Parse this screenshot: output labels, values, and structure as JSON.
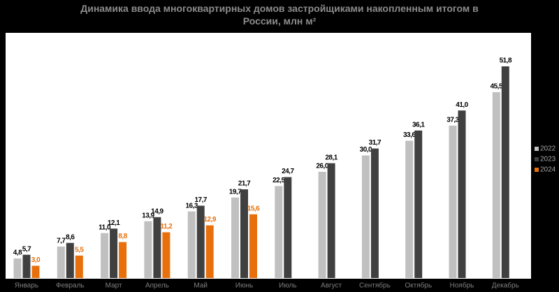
{
  "chart_data": {
    "type": "bar",
    "title": "Динамика ввода многоквартирных домов застройщиками накопленным итогом в России, млн м²",
    "categories": [
      "Январь",
      "Февраль",
      "Март",
      "Апрель",
      "Май",
      "Июнь",
      "Июль",
      "Август",
      "Сентябрь",
      "Октябрь",
      "Ноябрь",
      "Декабрь"
    ],
    "series": [
      {
        "name": "2022",
        "color": "#c0c0c0",
        "values": [
          4.8,
          7.7,
          11.0,
          13.9,
          16.3,
          19.7,
          22.5,
          26.0,
          30.0,
          33.6,
          37.3,
          45.5
        ],
        "value_labels": [
          "4,8",
          "7,7",
          "11,0",
          "13,9",
          "16,3",
          "19,7",
          "22,5",
          "26,0",
          "30,0",
          "33,6",
          "37,3",
          "45,5"
        ]
      },
      {
        "name": "2023",
        "color": "#404040",
        "values": [
          5.7,
          8.6,
          12.1,
          14.9,
          17.7,
          21.7,
          24.7,
          28.1,
          31.7,
          36.1,
          41.0,
          51.8
        ],
        "value_labels": [
          "5,7",
          "8,6",
          "12,1",
          "14,9",
          "17,7",
          "21,7",
          "24,7",
          "28,1",
          "31,7",
          "36,1",
          "41,0",
          "51,8"
        ]
      },
      {
        "name": "2024",
        "color": "#e8700c",
        "values": [
          3.0,
          5.5,
          8.8,
          11.2,
          12.9,
          15.6,
          null,
          null,
          null,
          null,
          null,
          null
        ],
        "value_labels": [
          "3,0",
          "5,5",
          "8,8",
          "11,2",
          "12,9",
          "15,6",
          null,
          null,
          null,
          null,
          null,
          null
        ]
      }
    ],
    "legend": "right"
  }
}
